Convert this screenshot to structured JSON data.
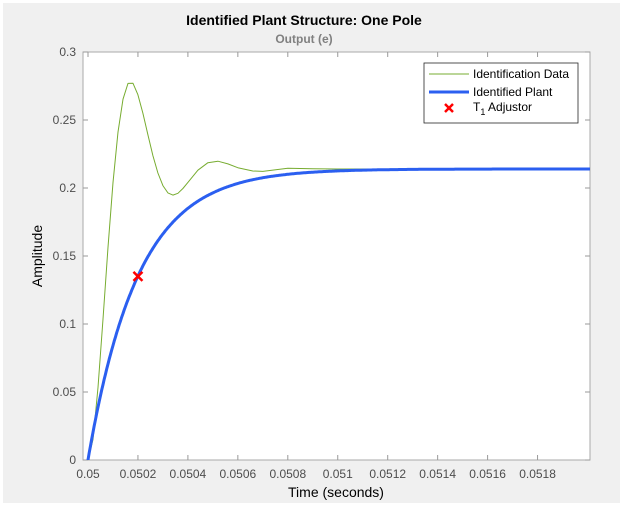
{
  "figure": {
    "title": "Identified Plant Structure: One Pole",
    "subtitle": "Output (e)",
    "background": "#f0f0f0"
  },
  "chart_data": {
    "type": "line",
    "title": "Identified Plant Structure: One Pole",
    "subtitle": "Output (e)",
    "xlabel": "Time (seconds)",
    "ylabel": "Amplitude",
    "xlim": [
      0.04998,
      0.05201
    ],
    "ylim": [
      0,
      0.3
    ],
    "xticks": [
      0.05,
      0.0502,
      0.0504,
      0.0506,
      0.0508,
      0.051,
      0.0512,
      0.0514,
      0.0516,
      0.0518
    ],
    "xtick_labels": [
      "0.05",
      "0.0502",
      "0.0504",
      "0.0506",
      "0.0508",
      "0.051",
      "0.0512",
      "0.0514",
      "0.0516",
      "0.0518"
    ],
    "yticks": [
      0,
      0.05,
      0.1,
      0.15,
      0.2,
      0.25,
      0.3
    ],
    "ytick_labels": [
      "0",
      "0.05",
      "0.1",
      "0.15",
      "0.2",
      "0.25",
      "0.3"
    ],
    "grid": false,
    "legend_position": "northeast",
    "legend": [
      "Identification Data",
      "Identified Plant",
      "T1 Adjustor"
    ],
    "series": [
      {
        "name": "Identification Data",
        "color": "#77ac30",
        "line_width": 1,
        "x": [
          0.05,
          0.05002,
          0.05004,
          0.05006,
          0.05008,
          0.0501,
          0.05012,
          0.05014,
          0.05016,
          0.05018,
          0.0502,
          0.05022,
          0.05024,
          0.05026,
          0.05028,
          0.0503,
          0.05032,
          0.05034,
          0.05036,
          0.05038,
          0.0504,
          0.05044,
          0.05048,
          0.05052,
          0.05056,
          0.0506,
          0.05066,
          0.0507,
          0.0508,
          0.0509,
          0.051,
          0.0512,
          0.0514,
          0.0516,
          0.0518,
          0.052
        ],
        "values": [
          0,
          0.0151,
          0.0533,
          0.1036,
          0.1564,
          0.204,
          0.2411,
          0.2653,
          0.2769,
          0.277,
          0.2686,
          0.2549,
          0.2392,
          0.2238,
          0.211,
          0.2018,
          0.1964,
          0.1948,
          0.1961,
          0.1996,
          0.2041,
          0.2131,
          0.2186,
          0.2197,
          0.2177,
          0.2149,
          0.2125,
          0.2122,
          0.2145,
          0.2141,
          0.214,
          0.214,
          0.214,
          0.214,
          0.214,
          0.214
        ]
      },
      {
        "name": "Identified Plant",
        "color": "#2b5ff0",
        "line_width": 3,
        "model": {
          "type": "first_order",
          "gain": 0.214,
          "time_constant": 0.0002,
          "delay_start": 0.05
        },
        "x": [
          0.05,
          0.05002,
          0.05004,
          0.05006,
          0.05008,
          0.0501,
          0.05012,
          0.05014,
          0.05016,
          0.05018,
          0.0502,
          0.05024,
          0.05028,
          0.05032,
          0.05036,
          0.0504,
          0.05046,
          0.05052,
          0.0506,
          0.0507,
          0.0508,
          0.0509,
          0.051,
          0.0512,
          0.0514,
          0.0516,
          0.0518,
          0.052
        ],
        "values": [
          0,
          0.0204,
          0.0388,
          0.0554,
          0.0705,
          0.0842,
          0.0964,
          0.1075,
          0.1175,
          0.1266,
          0.1347,
          0.1487,
          0.1602,
          0.1695,
          0.1772,
          0.1836,
          0.1908,
          0.1959,
          0.2001,
          0.2031,
          0.2111,
          0.2123,
          0.2126,
          0.2137,
          0.2139,
          0.214,
          0.214,
          0.214
        ]
      },
      {
        "name": "T1 Adjustor",
        "type": "marker",
        "marker": "x",
        "color": "#ff0000",
        "x": [
          0.0502
        ],
        "values": [
          0.135
        ]
      }
    ]
  },
  "legend": {
    "items": [
      {
        "label": "Identification Data",
        "color": "#77ac30",
        "kind": "thin-line"
      },
      {
        "label": "Identified Plant",
        "color": "#2b5ff0",
        "kind": "thick-line"
      },
      {
        "label_main": "T",
        "label_sub": "1",
        "label_rest": " Adjustor",
        "color": "#ff0000",
        "kind": "x-marker"
      }
    ]
  }
}
